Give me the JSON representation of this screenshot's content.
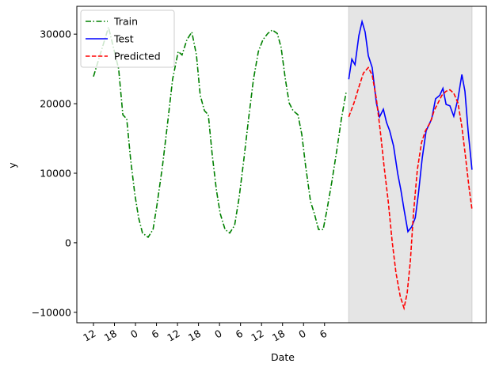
{
  "chart_data": {
    "type": "line",
    "xlabel": "Date",
    "ylabel": "y",
    "xlim": [
      -4.75,
      112.2
    ],
    "ylim": [
      -11500,
      34000
    ],
    "xticks": [
      {
        "value": 0,
        "label": "12"
      },
      {
        "value": 6,
        "label": "18"
      },
      {
        "value": 12,
        "label": "0"
      },
      {
        "value": 18,
        "label": "6"
      },
      {
        "value": 24,
        "label": "12"
      },
      {
        "value": 30,
        "label": "18"
      },
      {
        "value": 36,
        "label": "0"
      },
      {
        "value": 42,
        "label": "6"
      },
      {
        "value": 48,
        "label": "12"
      },
      {
        "value": 54,
        "label": "18"
      },
      {
        "value": 60,
        "label": "0"
      },
      {
        "value": 66,
        "label": "6"
      }
    ],
    "yticks": [
      {
        "value": -10000,
        "label": "−10000"
      },
      0,
      10000,
      20000,
      30000
    ],
    "shade": [
      72.9,
      108.1
    ],
    "shade_color": "#e5e5e5",
    "legend": "upper left",
    "series": [
      {
        "name": "Train",
        "color": "#008000",
        "dash": "dashdot",
        "x": [
          0,
          4.3,
          7.2,
          8.4,
          9.5,
          10.6,
          11.8,
          12.9,
          14.0,
          15.6,
          17.0,
          18.1,
          19.7,
          21.3,
          22.6,
          24.2,
          25.3,
          26.7,
          28.1,
          29.4,
          30.5,
          31.7,
          32.8,
          33.9,
          35.1,
          36.2,
          37.6,
          38.9,
          40.3,
          41.6,
          43.0,
          44.3,
          45.7,
          47.1,
          48.4,
          49.8,
          51.1,
          52.5,
          53.6,
          54.8,
          55.9,
          57.0,
          58.4,
          59.5,
          60.6,
          62.0,
          63.1,
          64.3,
          65.6,
          66.7,
          68.1,
          69.5,
          70.8,
          72.2
        ],
        "values": [
          23900,
          31000,
          25000,
          18400,
          17800,
          12000,
          7000,
          3600,
          1400,
          800,
          1900,
          5300,
          11000,
          17800,
          23500,
          27500,
          27000,
          29200,
          30300,
          27000,
          21200,
          19000,
          18400,
          12700,
          7600,
          4200,
          1900,
          1400,
          2500,
          6500,
          12200,
          17800,
          23500,
          27500,
          29200,
          30100,
          30600,
          30100,
          28100,
          23500,
          20100,
          19000,
          18400,
          15600,
          11000,
          5900,
          4200,
          1900,
          1900,
          4800,
          8800,
          13300,
          17800,
          21800
        ]
      },
      {
        "name": "Test",
        "color": "#0000ff",
        "dash": "solid",
        "x": [
          72.9,
          73.8,
          74.7,
          75.8,
          76.7,
          77.6,
          78.5,
          79.6,
          80.8,
          81.7,
          82.8,
          83.7,
          84.6,
          85.7,
          86.9,
          87.8,
          88.7,
          89.8,
          90.9,
          91.9,
          92.8,
          93.9,
          95.0,
          96.6,
          97.7,
          98.9,
          99.8,
          100.7,
          101.8,
          102.9,
          104.1,
          105.2,
          106.1,
          107.0,
          108.1
        ],
        "values": [
          23500,
          26400,
          25600,
          29800,
          31800,
          30300,
          26900,
          25200,
          20100,
          18100,
          19200,
          17300,
          16100,
          13900,
          9900,
          7600,
          4800,
          1600,
          2300,
          3600,
          7000,
          12200,
          16100,
          17800,
          20700,
          21200,
          22200,
          19900,
          19700,
          18200,
          20700,
          24200,
          21800,
          16100,
          10500
        ]
      },
      {
        "name": "Predicted",
        "color": "#ff0000",
        "dash": "dashed",
        "x": [
          72.9,
          74.4,
          75.8,
          77.1,
          78.5,
          79.6,
          80.8,
          81.9,
          83.0,
          84.2,
          85.3,
          86.4,
          87.6,
          88.7,
          89.6,
          90.5,
          91.4,
          92.5,
          93.7,
          94.8,
          96.2,
          97.3,
          98.4,
          99.5,
          100.7,
          101.8,
          102.9,
          104.1,
          105.2,
          106.3,
          107.2,
          108.1
        ],
        "values": [
          18100,
          20100,
          22400,
          24400,
          25200,
          24100,
          20700,
          16100,
          11000,
          5900,
          200,
          -4300,
          -7700,
          -9400,
          -7200,
          -2600,
          4200,
          10500,
          14400,
          16100,
          17300,
          19000,
          20100,
          21200,
          21800,
          22000,
          21500,
          20100,
          16700,
          12200,
          8200,
          4800
        ]
      }
    ]
  }
}
